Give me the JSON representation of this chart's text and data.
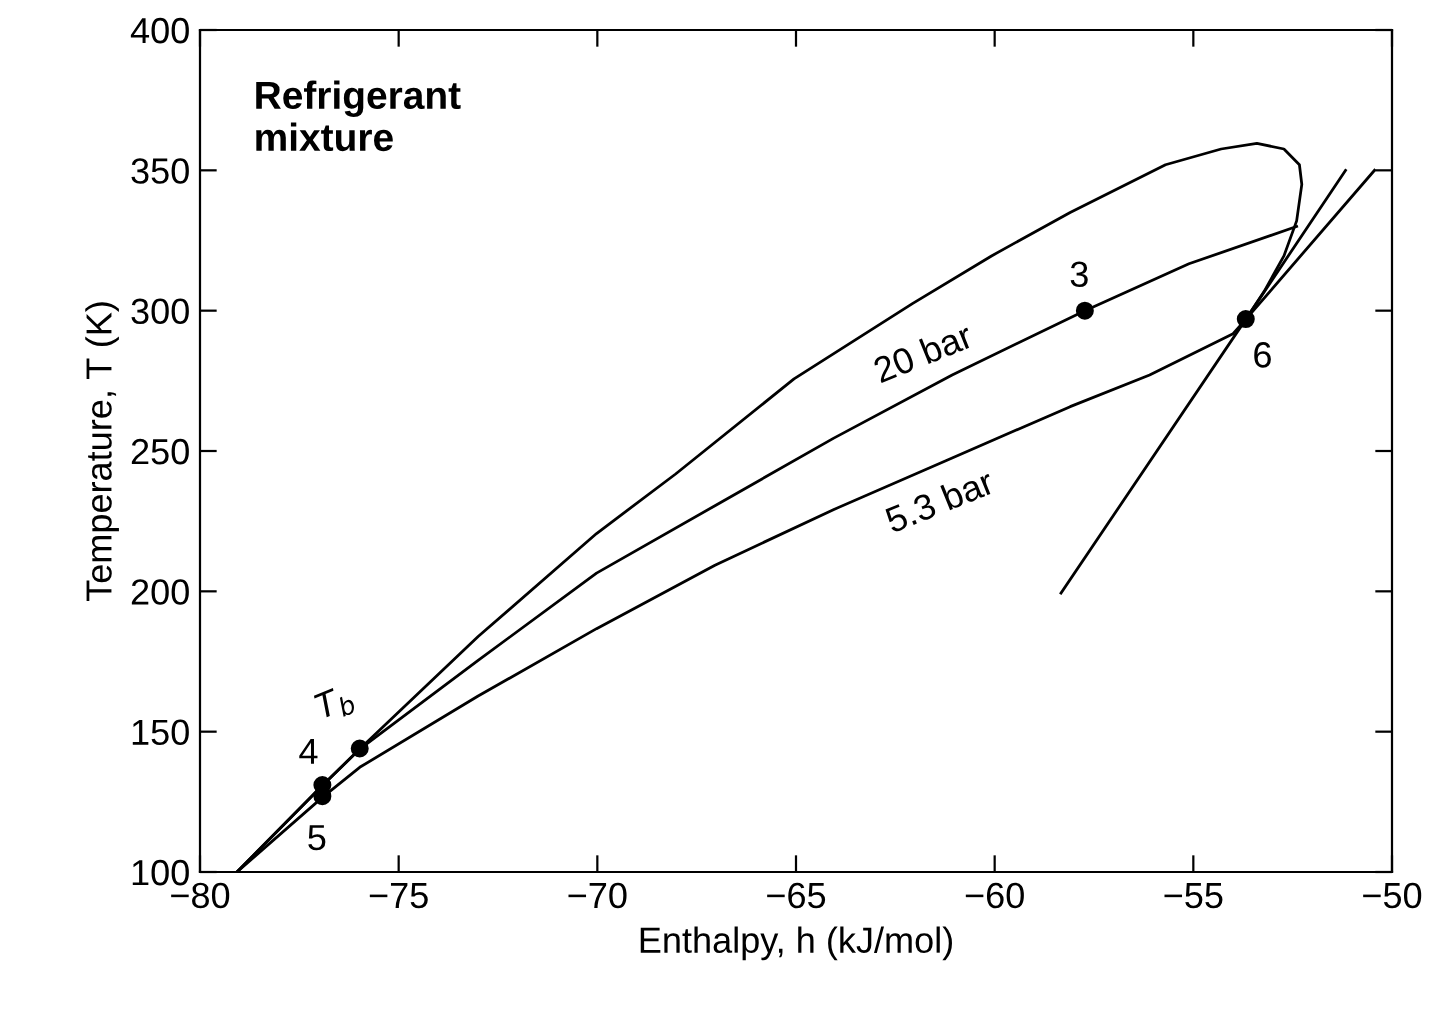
{
  "chart_data": {
    "type": "line",
    "xlabel": "Enthalpy, h (kJ/mol)",
    "ylabel": "Temperature, T (K)",
    "xlim": [
      -80,
      -50
    ],
    "ylim": [
      100,
      400
    ],
    "xticks": [
      {
        "value": -80,
        "label": "−80"
      },
      {
        "value": -75,
        "label": "−75"
      },
      {
        "value": -70,
        "label": "−70"
      },
      {
        "value": -65,
        "label": "−65"
      },
      {
        "value": -60,
        "label": "−60"
      },
      {
        "value": -55,
        "label": "−55"
      },
      {
        "value": -50,
        "label": "−50"
      }
    ],
    "yticks": [
      100,
      150,
      200,
      250,
      300,
      350,
      400
    ],
    "grid": false,
    "legend": false,
    "series": [
      {
        "color": "#000000",
        "marker": "none",
        "line_style": "solid",
        "x": [
          -79.07,
          -76.92,
          -75.98,
          -73.0,
          -70.02,
          -68.03,
          -65.05,
          -62.07,
          -60.08,
          -58.1,
          -55.7,
          -54.3,
          -53.4,
          -52.72,
          -52.33,
          -52.27,
          -52.4,
          -52.72,
          -53.22,
          -53.68
        ],
        "values": [
          100,
          130.8,
          143.8,
          183.9,
          220.6,
          241.8,
          275.7,
          302.5,
          319.5,
          335,
          352,
          357.6,
          359.6,
          357.6,
          352,
          345,
          332,
          319.5,
          306.8,
          296.9
        ]
      },
      {
        "color": "#000000",
        "marker": "none",
        "line_style": "solid",
        "x": [
          -79.07,
          -76.92,
          -75.98,
          -73.0,
          -70.02,
          -67.04,
          -64.06,
          -61.07,
          -57.73,
          -55.11,
          -52.4
        ],
        "values": [
          100,
          130.8,
          143.8,
          175.4,
          206.5,
          230.5,
          254.5,
          277.1,
          300,
          316.7,
          330
        ]
      },
      {
        "color": "#000000",
        "marker": "none",
        "line_style": "solid",
        "x": [
          -79.07,
          -76.92,
          -75.98,
          -73.0,
          -70.02,
          -67.04,
          -64.06,
          -61.07,
          -58.1,
          -56.1,
          -54.0,
          -53.68,
          -50.44
        ],
        "values": [
          100,
          126.6,
          137.3,
          162.7,
          186.7,
          209.3,
          229.1,
          247.5,
          265.8,
          277.1,
          291.8,
          296.9,
          350
        ]
      },
      {
        "color": "#000000",
        "marker": "none",
        "line_style": "solid",
        "x": [
          -58.33,
          -53.68,
          -51.17
        ],
        "values": [
          199.4,
          296.9,
          350
        ]
      },
      {
        "type": "scatter",
        "color": "#000000",
        "marker": "circle",
        "x": [
          -76.92,
          -76.92,
          -75.98,
          -57.73,
          -53.68
        ],
        "values": [
          131,
          127,
          144,
          300,
          297
        ]
      }
    ],
    "annotations": [
      "Refrigerant\nmixture",
      {
        "text": "4",
        "x": -76.92,
        "y": 131
      },
      {
        "text": "5",
        "x": -76.92,
        "y": 127
      },
      {
        "text": "T$_{b}$",
        "x": -75.98,
        "y": 144
      },
      {
        "text": "3",
        "x": -57.73,
        "y": 300
      },
      {
        "text": "6",
        "x": -53.68,
        "y": 297
      },
      {
        "text": "20 bar",
        "x": -61.5,
        "y": 274
      },
      {
        "text": "5.3 bar",
        "x": -61.5,
        "y": 245
      }
    ]
  }
}
